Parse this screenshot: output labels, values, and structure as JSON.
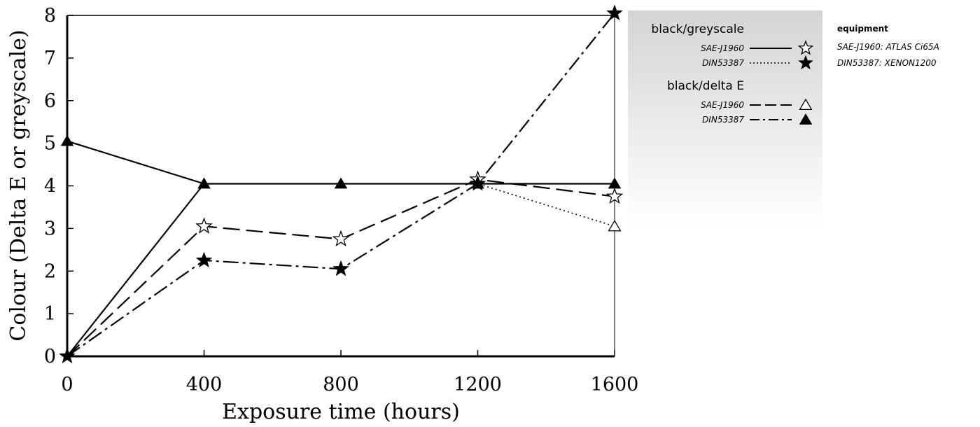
{
  "chart_data": {
    "type": "line",
    "x": [
      0,
      400,
      800,
      1200,
      1600
    ],
    "x_ticks": [
      "0",
      "400",
      "800",
      "1200",
      "1600"
    ],
    "y_ticks": [
      "0",
      "1",
      "2",
      "3",
      "4",
      "5",
      "6",
      "7",
      "8"
    ],
    "xlim": [
      0,
      1600
    ],
    "ylim": [
      0,
      8
    ],
    "xlabel": "Exposure time (hours)",
    "ylabel": "Colour (Delta E or greyscale)",
    "grid": false,
    "legend_position": "right",
    "series": [
      {
        "name": "SAE-J1960",
        "group": "black/greyscale",
        "line_style": "solid",
        "marker": "open-star",
        "values": [
          0,
          4.05,
          4.05,
          4.05,
          4.05
        ]
      },
      {
        "name": "DIN53387",
        "group": "black/greyscale",
        "line_style": "dotted",
        "marker": "filled-star",
        "values": [
          0,
          4.05,
          4.05,
          4.05,
          3.05
        ]
      },
      {
        "name": "SAE-J1960",
        "group": "black/delta E",
        "line_style": "dashed",
        "marker": "open-triangle",
        "values": [
          0,
          3.05,
          2.75,
          4.15,
          3.75
        ]
      },
      {
        "name": "DIN53387",
        "group": "black/delta E",
        "line_style": "dash-dot",
        "marker": "filled-triangle",
        "values": [
          0,
          2.25,
          2.05,
          4.05,
          8.05
        ]
      }
    ],
    "point_markers": [
      {
        "x": 0,
        "y": 5.05,
        "marker": "filled-triangle"
      },
      {
        "x": 400,
        "y": 4.05,
        "marker": "filled-triangle"
      },
      {
        "x": 800,
        "y": 4.05,
        "marker": "filled-triangle"
      },
      {
        "x": 1200,
        "y": 4.05,
        "marker": "filled-triangle"
      },
      {
        "x": 1600,
        "y": 4.05,
        "marker": "filled-triangle"
      },
      {
        "x": 0,
        "y": 0,
        "marker": "filled-star"
      },
      {
        "x": 400,
        "y": 3.05,
        "marker": "open-star"
      },
      {
        "x": 800,
        "y": 2.75,
        "marker": "open-star"
      },
      {
        "x": 1200,
        "y": 4.15,
        "marker": "open-star"
      },
      {
        "x": 1600,
        "y": 3.75,
        "marker": "open-star"
      },
      {
        "x": 400,
        "y": 2.25,
        "marker": "filled-star"
      },
      {
        "x": 800,
        "y": 2.05,
        "marker": "filled-star"
      },
      {
        "x": 1200,
        "y": 4.05,
        "marker": "filled-star"
      },
      {
        "x": 1600,
        "y": 8.05,
        "marker": "filled-star"
      },
      {
        "x": 1600,
        "y": 3.05,
        "marker": "open-triangle"
      }
    ],
    "extra_lines": [
      {
        "line_style": "solid",
        "points": [
          [
            0,
            5.05
          ],
          [
            400,
            4.05
          ]
        ]
      }
    ]
  },
  "legend": {
    "groups": [
      {
        "title": "black/greyscale",
        "entries": [
          {
            "label": "SAE-J1960",
            "line_style": "solid",
            "marker": "open-star"
          },
          {
            "label": "DIN53387",
            "line_style": "dotted",
            "marker": "filled-star"
          }
        ]
      },
      {
        "title": "black/delta E",
        "entries": [
          {
            "label": "SAE-J1960",
            "line_style": "dashed",
            "marker": "open-triangle"
          },
          {
            "label": "DIN53387",
            "line_style": "dash-dot",
            "marker": "filled-triangle"
          }
        ]
      }
    ]
  },
  "equipment": {
    "title": "equipment",
    "lines": [
      "SAE-J1960: ATLAS Ci65A",
      "DIN53387: XENON1200"
    ]
  },
  "colors": {
    "line": "#000000",
    "legend_gradient_top": "#d4d4d4",
    "background": "#ffffff"
  }
}
